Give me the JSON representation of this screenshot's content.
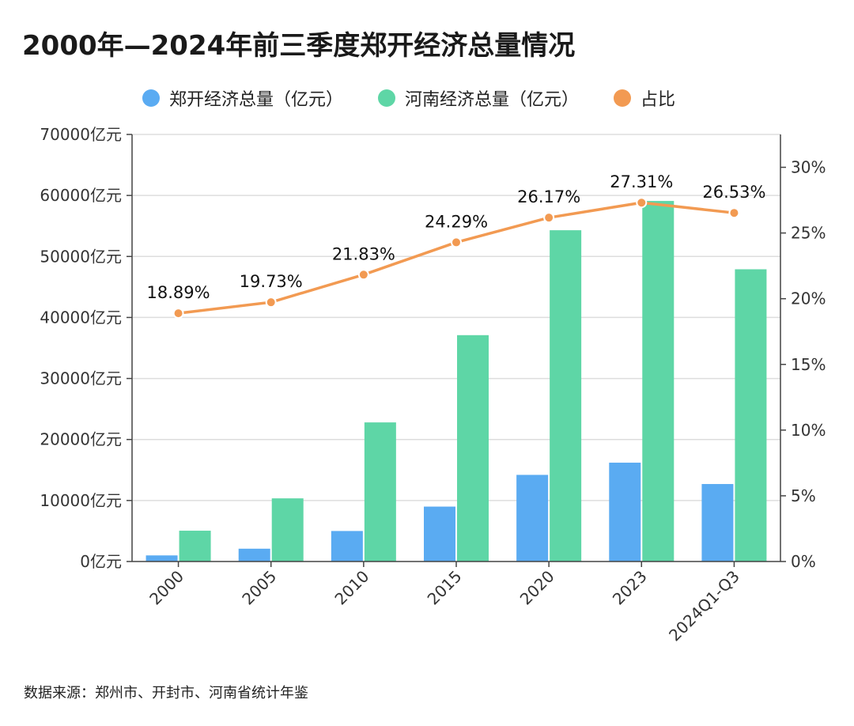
{
  "chart_data": {
    "type": "bar",
    "title": "2000年—2024年前三季度郑开经济总量情况",
    "categories": [
      "2000",
      "2005",
      "2010",
      "2015",
      "2020",
      "2023",
      "2024Q1-Q3"
    ],
    "series": [
      {
        "name": "郑开经济总量（亿元）",
        "type": "bar",
        "axis": "left",
        "color": "#5AABF2",
        "values": [
          1000,
          2100,
          5000,
          9000,
          14200,
          16200,
          12700
        ]
      },
      {
        "name": "河南经济总量（亿元）",
        "type": "bar",
        "axis": "left",
        "color": "#5ED6A6",
        "values": [
          5050,
          10350,
          22800,
          37100,
          54300,
          59100,
          47900
        ]
      },
      {
        "name": "占比",
        "type": "line",
        "axis": "right",
        "color": "#F29A52",
        "values": [
          18.89,
          19.73,
          21.83,
          24.29,
          26.17,
          27.31,
          26.53
        ],
        "labels": [
          "18.89%",
          "19.73%",
          "21.83%",
          "24.29%",
          "26.17%",
          "27.31%",
          "26.53%"
        ]
      }
    ],
    "y_left": {
      "min": 0,
      "max": 70000,
      "ticks": [
        0,
        10000,
        20000,
        30000,
        40000,
        50000,
        60000,
        70000
      ],
      "tick_labels": [
        "0亿元",
        "10000亿元",
        "20000亿元",
        "30000亿元",
        "40000亿元",
        "50000亿元",
        "60000亿元",
        "70000亿元"
      ]
    },
    "y_right": {
      "min": 0,
      "max": 32.5,
      "ticks": [
        0,
        5,
        10,
        15,
        20,
        25,
        30
      ],
      "tick_labels": [
        "0%",
        "5%",
        "10%",
        "15%",
        "20%",
        "25%",
        "30%"
      ]
    },
    "grid": true,
    "legend_position": "top-center"
  },
  "legend": [
    {
      "label": "郑开经济总量（亿元）",
      "color": "#5AABF2"
    },
    {
      "label": "河南经济总量（亿元）",
      "color": "#5ED6A6"
    },
    {
      "label": "占比",
      "color": "#F29A52"
    }
  ],
  "source": "数据来源：郑州市、开封市、河南省统计年鉴"
}
